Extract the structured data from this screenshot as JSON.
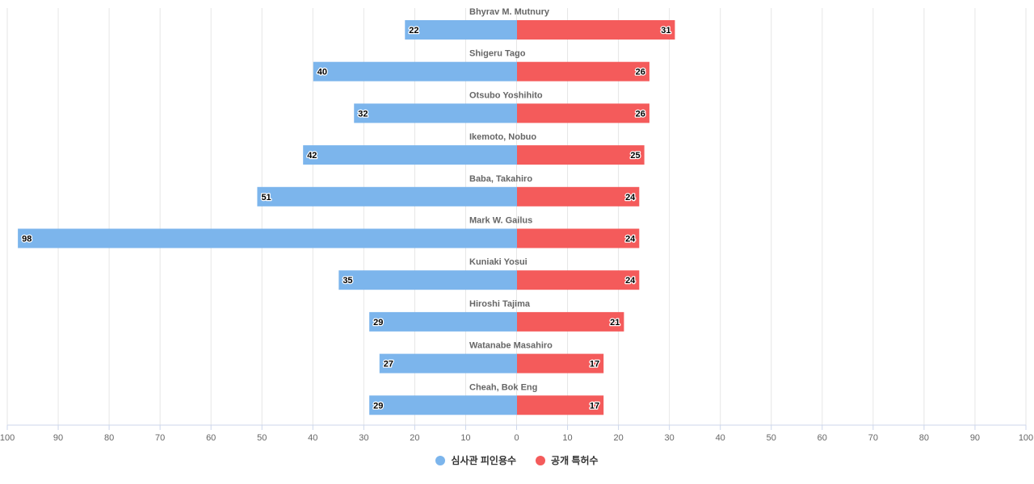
{
  "chart_data": {
    "type": "bar",
    "orientation": "horizontal-diverging",
    "categories": [
      "Bhyrav M. Mutnury",
      "Shigeru Tago",
      "Otsubo Yoshihito",
      "Ikemoto, Nobuo",
      "Baba, Takahiro",
      "Mark W. Gailus",
      "Kuniaki Yosui",
      "Hiroshi Tajima",
      "Watanabe Masahiro",
      "Cheah, Bok Eng"
    ],
    "series": [
      {
        "name": "심사관 피인용수",
        "side": "left",
        "color": "#7cb5ec",
        "values": [
          22,
          40,
          32,
          42,
          51,
          98,
          35,
          29,
          27,
          29
        ]
      },
      {
        "name": "공개 특허수",
        "side": "right",
        "color": "#f45b5b",
        "values": [
          31,
          26,
          26,
          25,
          24,
          24,
          24,
          21,
          17,
          17
        ]
      }
    ],
    "x_ticks": [
      "100",
      "90",
      "80",
      "70",
      "60",
      "50",
      "40",
      "30",
      "20",
      "10",
      "0",
      "10",
      "20",
      "30",
      "40",
      "50",
      "60",
      "70",
      "80",
      "90",
      "100"
    ],
    "xlim": [
      -100,
      100
    ],
    "grid": true,
    "legend_position": "bottom-center"
  }
}
